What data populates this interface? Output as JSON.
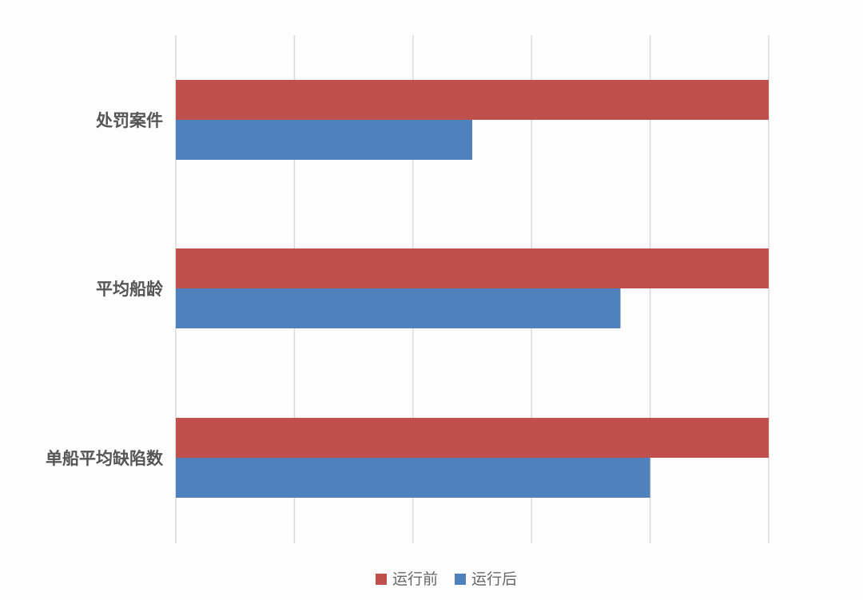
{
  "chart_data": {
    "type": "bar",
    "orientation": "horizontal",
    "categories": [
      "处罚案件",
      "平均船龄",
      "单船平均缺陷数"
    ],
    "series": [
      {
        "name": "运行前",
        "color": "#c0504d",
        "values": [
          1.0,
          1.0,
          1.0
        ]
      },
      {
        "name": "运行后",
        "color": "#4f81bd",
        "values": [
          0.5,
          0.75,
          0.8
        ]
      }
    ],
    "xlim": [
      0,
      1.0
    ],
    "x_ticks": [
      0,
      0.2,
      0.4,
      0.6,
      0.8,
      1.0
    ],
    "tick_labels_visible": false,
    "grid": true,
    "grid_color": "#d9d9d9",
    "legend_position": "bottom"
  }
}
